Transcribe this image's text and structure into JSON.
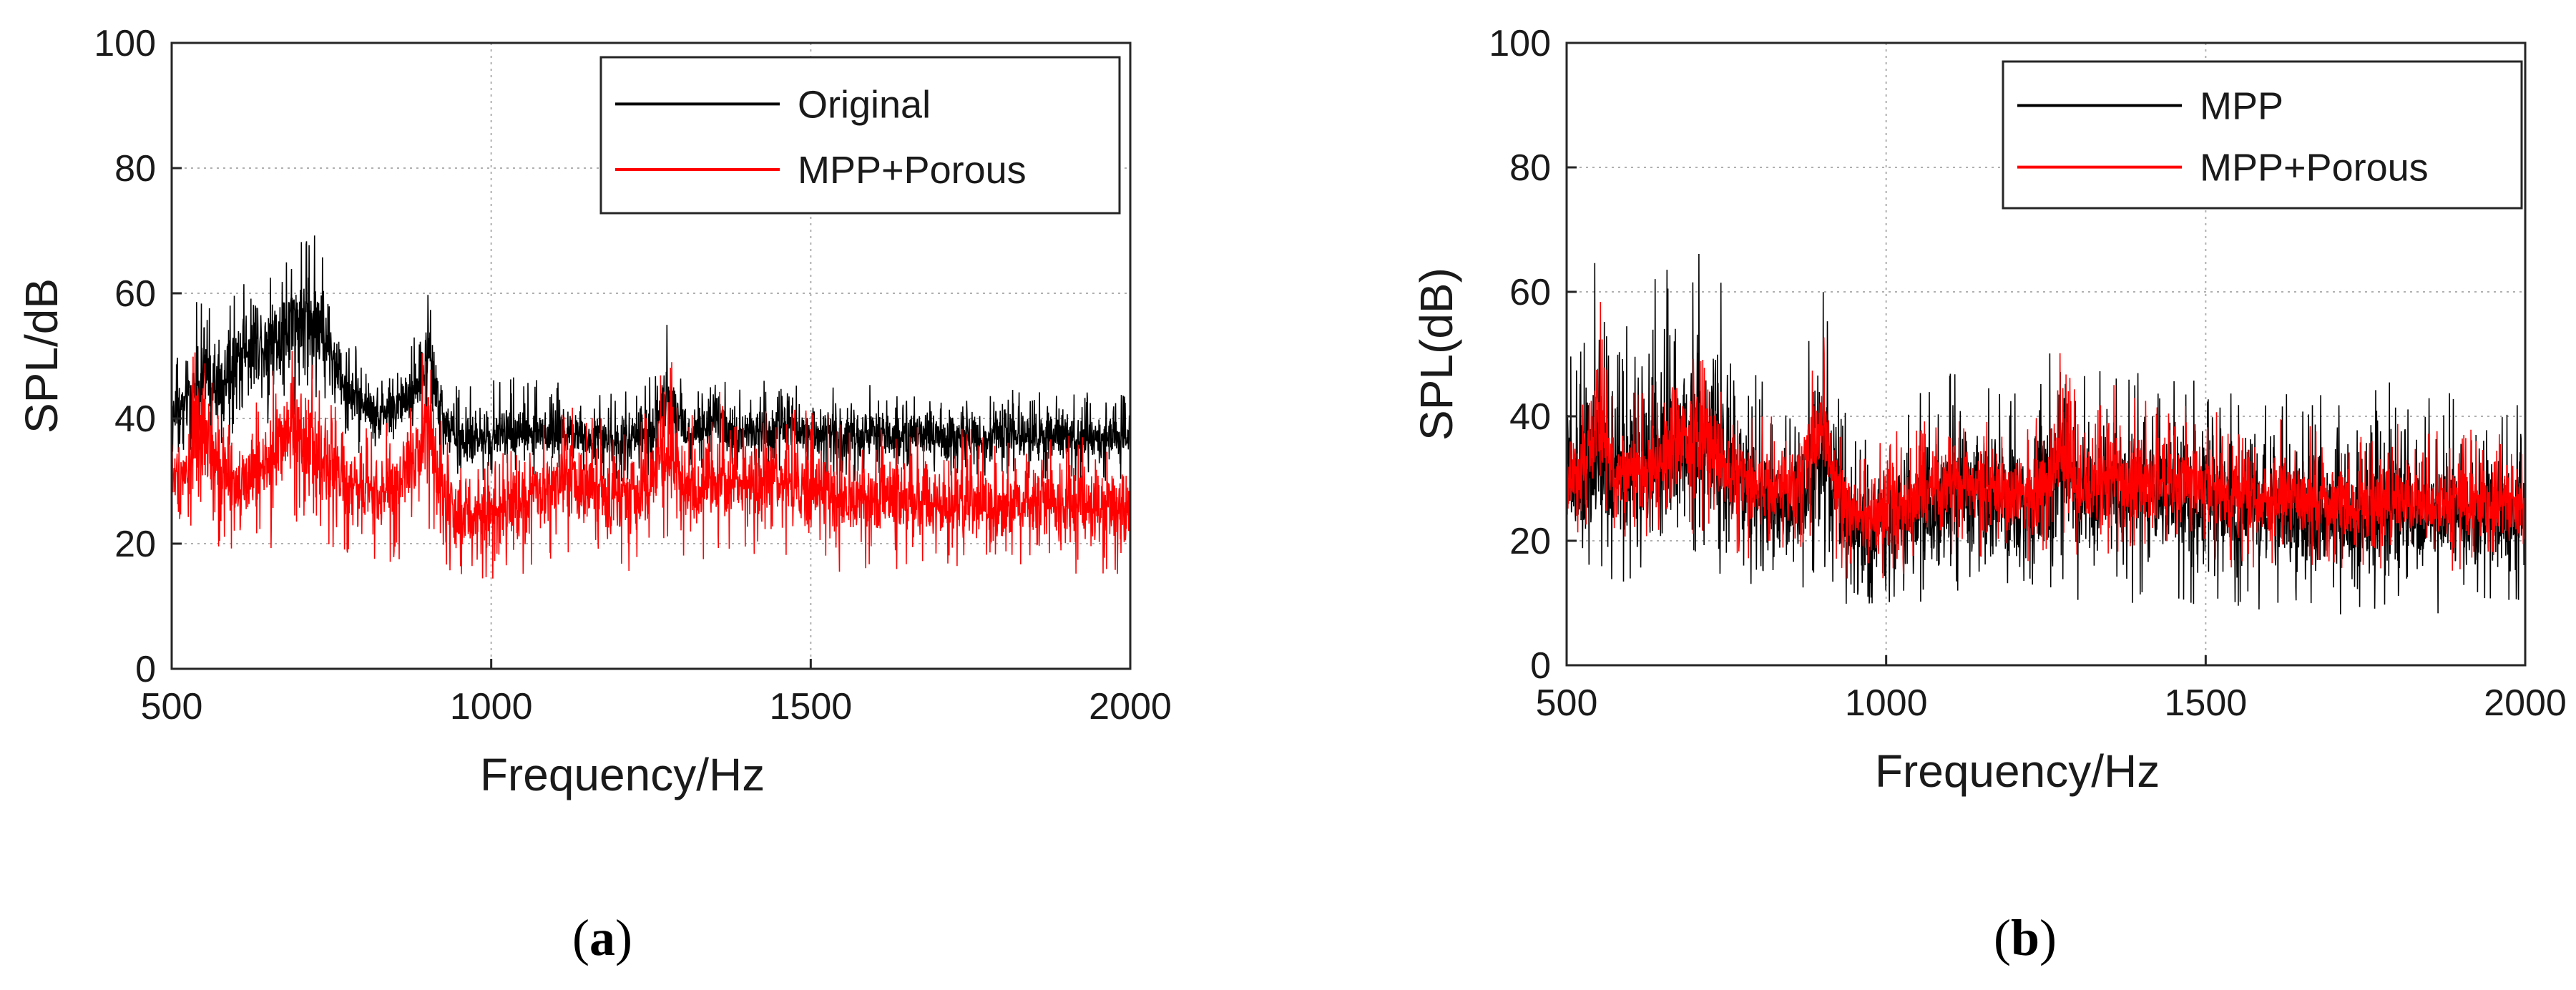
{
  "chart_data": [
    {
      "type": "line",
      "xlabel": "Frequency/Hz",
      "ylabel": "SPL/dB",
      "xlim": [
        500,
        2000
      ],
      "ylim": [
        0,
        100
      ],
      "xticks": [
        500,
        1000,
        1500,
        2000
      ],
      "yticks": [
        0,
        20,
        40,
        60,
        80,
        100
      ],
      "grid": true,
      "legend_position": "top-right",
      "caption": "(a)",
      "caption_letter": "a",
      "series": [
        {
          "name": "Original",
          "color": "#000000",
          "x": [
            500,
            525,
            550,
            575,
            600,
            625,
            650,
            675,
            700,
            725,
            750,
            775,
            800,
            825,
            850,
            875,
            900,
            925,
            950,
            975,
            1000,
            1025,
            1050,
            1075,
            1100,
            1125,
            1150,
            1175,
            1200,
            1225,
            1250,
            1275,
            1300,
            1325,
            1350,
            1375,
            1400,
            1425,
            1450,
            1475,
            1500,
            1525,
            1550,
            1575,
            1600,
            1625,
            1650,
            1675,
            1700,
            1725,
            1750,
            1775,
            1800,
            1825,
            1850,
            1875,
            1900,
            1925,
            1950,
            1975,
            2000
          ],
          "mean": [
            40,
            43,
            47,
            44,
            49,
            53,
            52,
            54,
            56,
            55,
            50,
            45,
            42,
            41,
            42,
            44,
            50,
            40,
            36,
            36,
            37,
            38,
            38,
            37,
            38,
            38,
            37,
            37,
            36,
            37,
            37,
            45,
            38,
            38,
            39,
            38,
            38,
            38,
            39,
            38,
            38,
            38,
            37,
            37,
            38,
            37,
            37,
            37,
            37,
            37,
            37,
            37,
            38,
            37,
            37,
            37,
            37,
            37,
            37,
            37,
            37
          ],
          "max": [
            48,
            55,
            68,
            55,
            62,
            64,
            66,
            67,
            68,
            71,
            60,
            55,
            50,
            48,
            50,
            52,
            61,
            47,
            45,
            47,
            46,
            47,
            48,
            46,
            47,
            47,
            45,
            45,
            44,
            46,
            48,
            56,
            46,
            45,
            47,
            46,
            46,
            46,
            47,
            46,
            46,
            46,
            45,
            44,
            46,
            45,
            44,
            45,
            44,
            44,
            45,
            44,
            46,
            45,
            44,
            45,
            44,
            44,
            45,
            44,
            44
          ],
          "min": [
            33,
            34,
            36,
            33,
            37,
            40,
            38,
            39,
            40,
            41,
            38,
            35,
            34,
            33,
            33,
            35,
            38,
            32,
            29,
            29,
            30,
            31,
            31,
            30,
            31,
            31,
            30,
            30,
            29,
            30,
            30,
            35,
            31,
            31,
            31,
            31,
            31,
            30,
            31,
            31,
            30,
            31,
            30,
            30,
            31,
            30,
            30,
            30,
            30,
            30,
            30,
            30,
            31,
            30,
            30,
            30,
            30,
            30,
            30,
            30,
            30
          ]
        },
        {
          "name": "MPP+Porous",
          "color": "#ff0000",
          "x": [
            500,
            525,
            550,
            575,
            600,
            625,
            650,
            675,
            700,
            725,
            750,
            775,
            800,
            825,
            850,
            875,
            900,
            925,
            950,
            975,
            1000,
            1025,
            1050,
            1075,
            1100,
            1125,
            1150,
            1175,
            1200,
            1225,
            1250,
            1275,
            1300,
            1325,
            1350,
            1375,
            1400,
            1425,
            1450,
            1475,
            1500,
            1525,
            1550,
            1575,
            1600,
            1625,
            1650,
            1675,
            1700,
            1725,
            1750,
            1775,
            1800,
            1825,
            1850,
            1875,
            1900,
            1925,
            1950,
            1975,
            2000
          ],
          "mean": [
            30,
            32,
            38,
            30,
            30,
            30,
            33,
            36,
            38,
            35,
            32,
            29,
            28,
            28,
            29,
            33,
            40,
            28,
            24,
            24,
            25,
            26,
            27,
            28,
            29,
            30,
            29,
            28,
            27,
            28,
            29,
            36,
            29,
            29,
            30,
            30,
            30,
            30,
            30,
            29,
            29,
            28,
            27,
            27,
            27,
            27,
            27,
            27,
            26,
            26,
            26,
            26,
            26,
            26,
            26,
            26,
            26,
            26,
            26,
            26,
            26
          ],
          "max": [
            38,
            45,
            63,
            43,
            44,
            45,
            47,
            50,
            52,
            50,
            45,
            42,
            40,
            40,
            41,
            45,
            54,
            40,
            35,
            36,
            37,
            38,
            39,
            40,
            41,
            42,
            41,
            40,
            39,
            40,
            42,
            52,
            42,
            42,
            46,
            43,
            43,
            44,
            43,
            42,
            42,
            41,
            40,
            39,
            40,
            40,
            39,
            39,
            38,
            38,
            39,
            38,
            39,
            38,
            38,
            38,
            38,
            38,
            38,
            38,
            38
          ],
          "min": [
            20,
            21,
            24,
            19,
            18,
            18,
            19,
            20,
            21,
            20,
            19,
            17,
            16,
            16,
            17,
            19,
            23,
            16,
            12,
            12,
            13,
            14,
            15,
            16,
            17,
            18,
            17,
            16,
            15,
            16,
            17,
            21,
            17,
            17,
            18,
            18,
            18,
            18,
            18,
            17,
            17,
            16,
            15,
            15,
            15,
            15,
            15,
            15,
            15,
            15,
            15,
            15,
            15,
            15,
            15,
            15,
            15,
            15,
            15,
            15,
            15
          ]
        }
      ]
    },
    {
      "type": "line",
      "xlabel": "Frequency/Hz",
      "ylabel": "SPL(dB)",
      "xlim": [
        500,
        2000
      ],
      "ylim": [
        0,
        100
      ],
      "xticks": [
        500,
        1000,
        1500,
        2000
      ],
      "yticks": [
        0,
        20,
        40,
        60,
        80,
        100
      ],
      "grid": true,
      "legend_position": "top-right",
      "caption": "(b)",
      "caption_letter": "b",
      "series": [
        {
          "name": "MPP",
          "color": "#000000",
          "x": [
            500,
            525,
            550,
            575,
            600,
            625,
            650,
            675,
            700,
            725,
            750,
            775,
            800,
            825,
            850,
            875,
            900,
            925,
            950,
            975,
            1000,
            1025,
            1050,
            1075,
            1100,
            1125,
            1150,
            1175,
            1200,
            1225,
            1250,
            1275,
            1300,
            1325,
            1350,
            1375,
            1400,
            1425,
            1450,
            1475,
            1500,
            1525,
            1550,
            1575,
            1600,
            1625,
            1650,
            1675,
            1700,
            1725,
            1750,
            1775,
            1800,
            1825,
            1850,
            1875,
            1900,
            1925,
            1950,
            1975,
            2000
          ],
          "mean": [
            29,
            30,
            32,
            30,
            31,
            32,
            33,
            35,
            37,
            35,
            32,
            29,
            27,
            26,
            26,
            29,
            35,
            26,
            22,
            22,
            23,
            24,
            24,
            25,
            26,
            27,
            26,
            25,
            24,
            26,
            28,
            31,
            27,
            27,
            29,
            27,
            27,
            27,
            28,
            26,
            26,
            25,
            24,
            24,
            25,
            24,
            24,
            24,
            23,
            23,
            24,
            24,
            25,
            24,
            24,
            24,
            24,
            24,
            24,
            24,
            24
          ],
          "max": [
            50,
            55,
            70,
            56,
            60,
            62,
            65,
            66,
            67,
            72,
            60,
            54,
            48,
            46,
            47,
            50,
            69,
            46,
            42,
            42,
            43,
            44,
            45,
            46,
            47,
            48,
            47,
            45,
            44,
            47,
            50,
            57,
            47,
            47,
            51,
            48,
            48,
            49,
            50,
            46,
            46,
            45,
            44,
            43,
            45,
            44,
            43,
            44,
            43,
            43,
            46,
            44,
            48,
            44,
            43,
            44,
            43,
            43,
            44,
            43,
            42
          ],
          "min": [
            11,
            12,
            13,
            12,
            13,
            14,
            15,
            16,
            17,
            15,
            13,
            11,
            10,
            9,
            9,
            10,
            14,
            9,
            8,
            8,
            9,
            10,
            10,
            10,
            11,
            11,
            10,
            10,
            9,
            10,
            11,
            12,
            10,
            10,
            11,
            10,
            10,
            10,
            11,
            10,
            9,
            9,
            8,
            8,
            9,
            8,
            8,
            8,
            8,
            8,
            8,
            8,
            9,
            8,
            8,
            8,
            8,
            8,
            8,
            8,
            8
          ]
        },
        {
          "name": "MPP+Porous",
          "color": "#ff0000",
          "x": [
            500,
            525,
            550,
            575,
            600,
            625,
            650,
            675,
            700,
            725,
            750,
            775,
            800,
            825,
            850,
            875,
            900,
            925,
            950,
            975,
            1000,
            1025,
            1050,
            1075,
            1100,
            1125,
            1150,
            1175,
            1200,
            1225,
            1250,
            1275,
            1300,
            1325,
            1350,
            1375,
            1400,
            1425,
            1450,
            1475,
            1500,
            1525,
            1550,
            1575,
            1600,
            1625,
            1650,
            1675,
            1700,
            1725,
            1750,
            1775,
            1800,
            1825,
            1850,
            1875,
            1900,
            1925,
            1950,
            1975,
            2000
          ],
          "mean": [
            30,
            32,
            38,
            31,
            31,
            31,
            33,
            36,
            38,
            35,
            32,
            29,
            28,
            28,
            29,
            33,
            40,
            28,
            24,
            24,
            25,
            26,
            27,
            28,
            29,
            30,
            29,
            28,
            27,
            28,
            29,
            35,
            29,
            29,
            31,
            30,
            30,
            30,
            30,
            29,
            29,
            28,
            27,
            27,
            27,
            27,
            27,
            26,
            26,
            26,
            26,
            26,
            26,
            26,
            26,
            26,
            26,
            26,
            26,
            26,
            26
          ],
          "max": [
            38,
            45,
            64,
            43,
            44,
            45,
            47,
            50,
            53,
            50,
            45,
            42,
            40,
            40,
            41,
            45,
            56,
            40,
            35,
            36,
            37,
            38,
            39,
            40,
            41,
            42,
            41,
            40,
            39,
            40,
            42,
            56,
            42,
            42,
            46,
            43,
            43,
            44,
            43,
            42,
            42,
            41,
            40,
            39,
            40,
            40,
            39,
            39,
            38,
            38,
            39,
            38,
            39,
            38,
            38,
            38,
            38,
            38,
            38,
            38,
            38
          ],
          "min": [
            20,
            21,
            24,
            19,
            18,
            18,
            19,
            20,
            21,
            20,
            19,
            17,
            16,
            16,
            17,
            19,
            23,
            16,
            12,
            12,
            13,
            14,
            15,
            16,
            17,
            18,
            17,
            16,
            15,
            16,
            17,
            21,
            17,
            17,
            18,
            18,
            18,
            18,
            18,
            17,
            17,
            16,
            15,
            15,
            15,
            15,
            15,
            15,
            15,
            15,
            15,
            15,
            15,
            15,
            15,
            15,
            15,
            15,
            15,
            15,
            15
          ]
        }
      ]
    }
  ]
}
